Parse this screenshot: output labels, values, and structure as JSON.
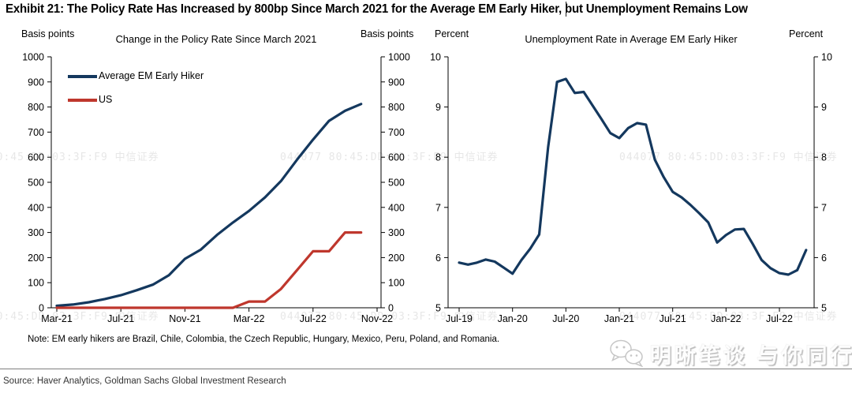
{
  "page": {
    "title": "Exhibit 21: The Policy Rate Has Increased by 800bp Since March 2021 for the Average EM Early Hiker, but Unemployment Remains Low",
    "note": "Note: EM early hikers are Brazil, Chile, Colombia, the Czech Republic, Hungary, Mexico, Peru, Poland, and Romania.",
    "source": "Source: Haver Analytics, Goldman Sachs Global Investment Research"
  },
  "watermark": {
    "tiled_text": "044077  80:45:DD:03:3F:F9  中信证券",
    "badge_text": "明晰笔谈 与你同行"
  },
  "colors": {
    "em_line": "#14385e",
    "us_line": "#bf372d",
    "axis": "#000000",
    "tiled_watermark": "#e7e7e7",
    "divider": "#7f7f7f"
  },
  "chart_data": [
    {
      "type": "line",
      "title": "Change in the Policy Rate Since March 2021",
      "unit_left": "Basis points",
      "unit_right": "Basis points",
      "ylim": [
        0,
        1000
      ],
      "yticks": [
        0,
        100,
        200,
        300,
        400,
        500,
        600,
        700,
        800,
        900,
        1000
      ],
      "x_start": "Mar-21",
      "x_frequency": "monthly",
      "x_tick_labels": [
        "Mar-21",
        "Jul-21",
        "Nov-21",
        "Mar-22",
        "Jul-22",
        "Nov-22"
      ],
      "x_tick_month_index": [
        0,
        4,
        8,
        12,
        16,
        20
      ],
      "legend_position": "top-left",
      "grid": false,
      "series": [
        {
          "name": "Average EM Early Hiker",
          "color_key": "em_line",
          "months": [
            "Mar-21",
            "Apr-21",
            "May-21",
            "Jun-21",
            "Jul-21",
            "Aug-21",
            "Sep-21",
            "Oct-21",
            "Nov-21",
            "Dec-21",
            "Jan-22",
            "Feb-22",
            "Mar-22",
            "Apr-22",
            "May-22",
            "Jun-22",
            "Jul-22",
            "Aug-22",
            "Sep-22",
            "Oct-22"
          ],
          "values": [
            8,
            13,
            22,
            35,
            50,
            70,
            92,
            130,
            195,
            232,
            290,
            340,
            386,
            440,
            505,
            590,
            670,
            745,
            785,
            812
          ]
        },
        {
          "name": "US",
          "color_key": "us_line",
          "months": [
            "Mar-21",
            "Apr-21",
            "May-21",
            "Jun-21",
            "Jul-21",
            "Aug-21",
            "Sep-21",
            "Oct-21",
            "Nov-21",
            "Dec-21",
            "Jan-22",
            "Feb-22",
            "Mar-22",
            "Apr-22",
            "May-22",
            "Jun-22",
            "Jul-22",
            "Aug-22",
            "Sep-22",
            "Oct-22"
          ],
          "values": [
            0,
            0,
            0,
            0,
            0,
            0,
            0,
            0,
            0,
            0,
            0,
            0,
            25,
            25,
            75,
            150,
            225,
            225,
            300,
            300
          ]
        }
      ]
    },
    {
      "type": "line",
      "title": "Unemployment Rate in Average EM Early Hiker",
      "unit_left": "Percent",
      "unit_right": "Percent",
      "ylim": [
        5,
        10
      ],
      "yticks": [
        5,
        6,
        7,
        8,
        9,
        10
      ],
      "x_start": "Jul-19",
      "x_frequency": "monthly",
      "x_tick_labels": [
        "Jul-19",
        "Jan-20",
        "Jul-20",
        "Jan-21",
        "Jul-21",
        "Jan-22",
        "Jul-22"
      ],
      "x_tick_month_index": [
        0,
        6,
        12,
        18,
        24,
        30,
        36
      ],
      "legend_position": "none",
      "grid": false,
      "series": [
        {
          "name": "Average EM Early Hiker",
          "color_key": "em_line",
          "months": [
            "Jul-19",
            "Aug-19",
            "Sep-19",
            "Oct-19",
            "Nov-19",
            "Dec-19",
            "Jan-20",
            "Feb-20",
            "Mar-20",
            "Apr-20",
            "May-20",
            "Jun-20",
            "Jul-20",
            "Aug-20",
            "Sep-20",
            "Oct-20",
            "Nov-20",
            "Dec-20",
            "Jan-21",
            "Feb-21",
            "Mar-21",
            "Apr-21",
            "May-21",
            "Jun-21",
            "Jul-21",
            "Aug-21",
            "Sep-21",
            "Oct-21",
            "Nov-21",
            "Dec-21",
            "Jan-22",
            "Feb-22",
            "Mar-22",
            "Apr-22",
            "May-22",
            "Jun-22",
            "Jul-22",
            "Aug-22",
            "Sep-22",
            "Oct-22"
          ],
          "values": [
            5.9,
            5.86,
            5.9,
            5.96,
            5.92,
            5.8,
            5.68,
            5.95,
            6.18,
            6.46,
            8.2,
            9.5,
            9.56,
            9.28,
            9.3,
            9.03,
            8.76,
            8.48,
            8.38,
            8.58,
            8.68,
            8.65,
            7.95,
            7.6,
            7.31,
            7.2,
            7.05,
            6.88,
            6.7,
            6.3,
            6.45,
            6.56,
            6.57,
            6.27,
            5.95,
            5.79,
            5.69,
            5.66,
            5.75,
            6.15
          ]
        }
      ]
    }
  ]
}
